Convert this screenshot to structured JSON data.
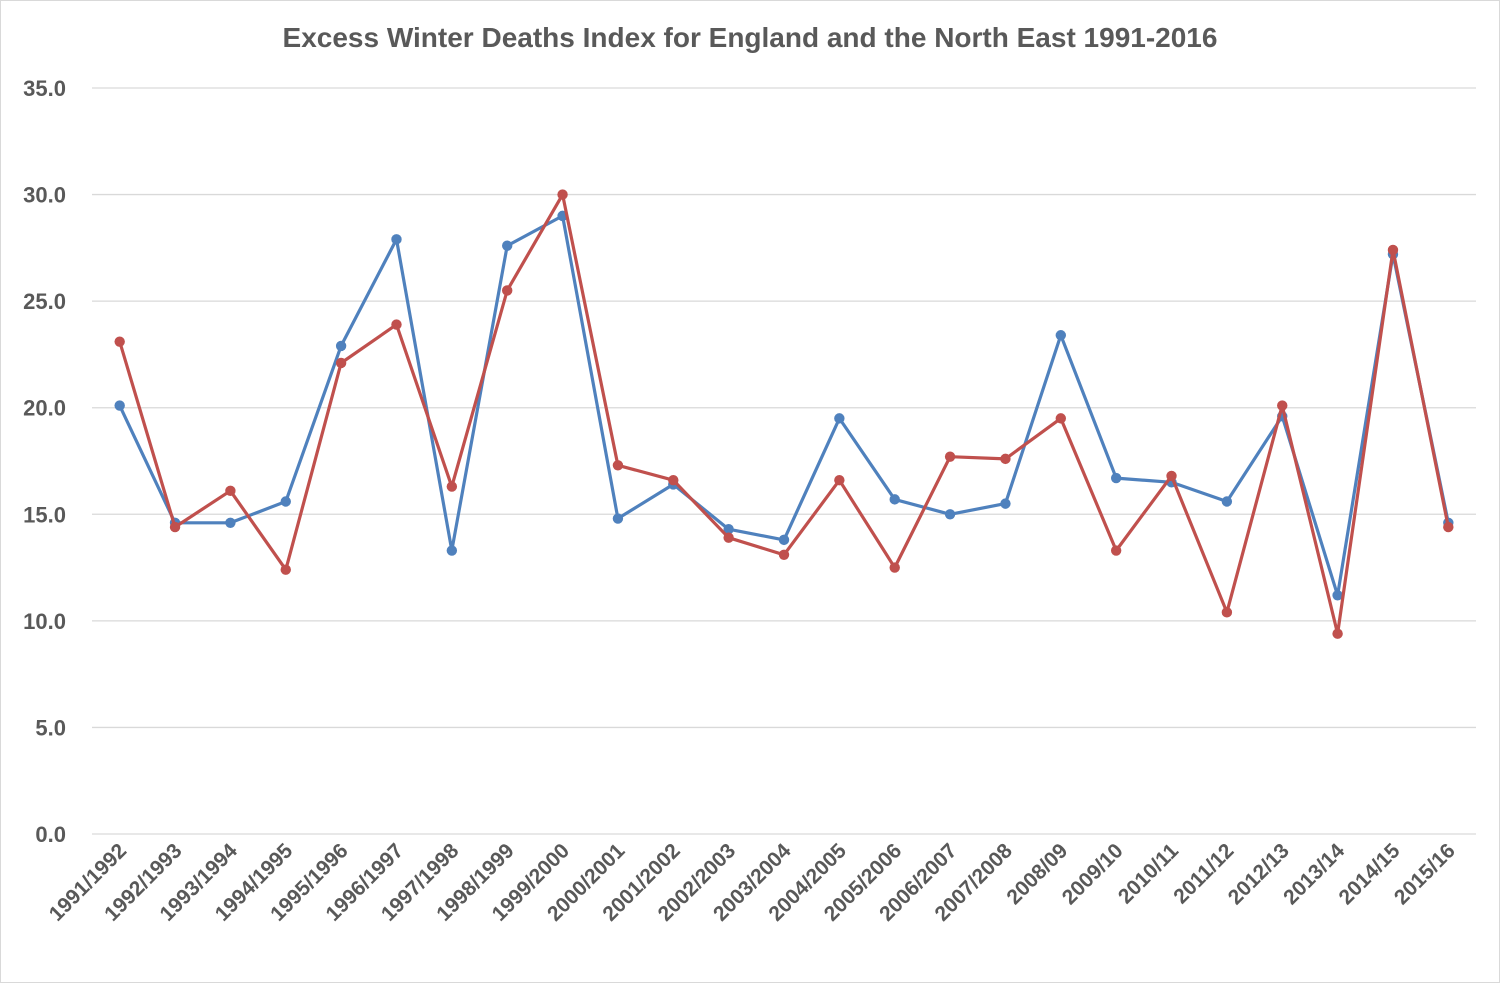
{
  "chart_data": {
    "type": "line",
    "title": "Excess Winter Deaths Index for England and the North East 1991-2016",
    "xlabel": "",
    "ylabel": "",
    "ylim": [
      0,
      35
    ],
    "yticks": [
      "0.0",
      "5.0",
      "10.0",
      "15.0",
      "20.0",
      "25.0",
      "30.0",
      "35.0"
    ],
    "grid": true,
    "legend": "none",
    "categories": [
      "1991/1992",
      "1992/1993",
      "1993/1994",
      "1994/1995",
      "1995/1996",
      "1996/1997",
      "1997/1998",
      "1998/1999",
      "1999/2000",
      "2000/2001",
      "2001/2002",
      "2002/2003",
      "2003/2004",
      "2004/2005",
      "2005/2006",
      "2006/2007",
      "2007/2008",
      "2008/09",
      "2009/10",
      "2010/11",
      "2011/12",
      "2012/13",
      "2013/14",
      "2014/15",
      "2015/16"
    ],
    "series": [
      {
        "name": "England",
        "color": "#4F81BD",
        "values": [
          20.1,
          14.6,
          14.6,
          15.6,
          22.9,
          27.9,
          13.3,
          27.6,
          29.0,
          14.8,
          16.4,
          14.3,
          13.8,
          19.5,
          15.7,
          15.0,
          15.5,
          23.4,
          16.7,
          16.5,
          15.6,
          19.6,
          11.2,
          27.2,
          14.6
        ]
      },
      {
        "name": "North East",
        "color": "#C0504D",
        "values": [
          23.1,
          14.4,
          16.1,
          12.4,
          22.1,
          23.9,
          16.3,
          25.5,
          30.0,
          17.3,
          16.6,
          13.9,
          13.1,
          16.6,
          12.5,
          17.7,
          17.6,
          19.5,
          13.3,
          16.8,
          10.4,
          20.1,
          9.4,
          27.4,
          14.4
        ]
      }
    ]
  }
}
